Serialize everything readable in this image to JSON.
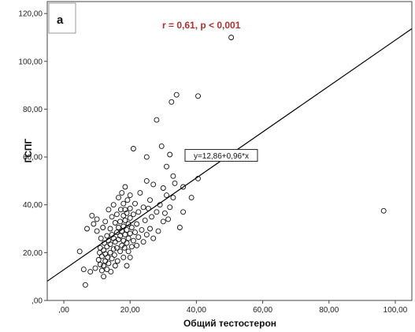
{
  "chart_data": {
    "type": "scatter",
    "panel_label": "а",
    "annotation": "r = 0,61, p < 0,001",
    "xlabel": "Общий тестостерон",
    "ylabel": "ГСПГ",
    "xlim": [
      -5,
      105
    ],
    "ylim": [
      0,
      125
    ],
    "x_ticks": [
      ",00",
      "20,00",
      "40,00",
      "60,00",
      "80,00",
      "100,00"
    ],
    "x_tick_values": [
      0,
      20,
      40,
      60,
      80,
      100
    ],
    "y_ticks": [
      ",00",
      "20,00",
      "40,00",
      "60,00",
      "80,00",
      "100,00",
      "120,00"
    ],
    "y_tick_values": [
      0,
      20,
      40,
      60,
      80,
      100,
      120
    ],
    "regression": {
      "label": "y=12,86+0,96*x",
      "intercept": 12.86,
      "slope": 0.96,
      "label_at": [
        47.5,
        60.5
      ]
    },
    "points": [
      [
        4.8,
        20.5
      ],
      [
        6.0,
        13.0
      ],
      [
        6.5,
        6.5
      ],
      [
        7.0,
        30.0
      ],
      [
        8.0,
        12.0
      ],
      [
        8.5,
        35.5
      ],
      [
        9.0,
        32.0
      ],
      [
        9.5,
        13.5
      ],
      [
        10.0,
        29.0
      ],
      [
        10.0,
        34.0
      ],
      [
        10.5,
        17.0
      ],
      [
        10.8,
        20.0
      ],
      [
        11.0,
        15.0
      ],
      [
        11.0,
        22.0
      ],
      [
        11.2,
        26.0
      ],
      [
        11.5,
        12.5
      ],
      [
        11.5,
        18.5
      ],
      [
        11.8,
        30.5
      ],
      [
        12.0,
        10.0
      ],
      [
        12.0,
        14.5
      ],
      [
        12.0,
        21.0
      ],
      [
        12.2,
        24.0
      ],
      [
        12.5,
        16.5
      ],
      [
        12.5,
        19.5
      ],
      [
        12.5,
        33.0
      ],
      [
        13.0,
        13.0
      ],
      [
        13.0,
        22.5
      ],
      [
        13.0,
        27.0
      ],
      [
        13.2,
        18.0
      ],
      [
        13.5,
        15.5
      ],
      [
        13.5,
        25.0
      ],
      [
        13.5,
        38.0
      ],
      [
        14.0,
        20.0
      ],
      [
        14.0,
        23.5
      ],
      [
        14.0,
        30.0
      ],
      [
        14.2,
        12.0
      ],
      [
        14.5,
        17.5
      ],
      [
        14.5,
        27.5
      ],
      [
        14.5,
        35.0
      ],
      [
        15.0,
        21.5
      ],
      [
        15.0,
        26.0
      ],
      [
        15.0,
        40.0
      ],
      [
        15.3,
        19.0
      ],
      [
        15.5,
        14.5
      ],
      [
        15.5,
        24.5
      ],
      [
        15.5,
        32.5
      ],
      [
        16.0,
        22.0
      ],
      [
        16.0,
        28.5
      ],
      [
        16.0,
        36.0
      ],
      [
        16.2,
        16.5
      ],
      [
        16.5,
        25.5
      ],
      [
        16.5,
        30.5
      ],
      [
        16.5,
        43.0
      ],
      [
        17.0,
        20.5
      ],
      [
        17.0,
        27.0
      ],
      [
        17.0,
        33.0
      ],
      [
        17.2,
        38.0
      ],
      [
        17.5,
        23.0
      ],
      [
        17.5,
        29.0
      ],
      [
        17.5,
        45.0
      ],
      [
        18.0,
        18.0
      ],
      [
        18.0,
        25.0
      ],
      [
        18.0,
        31.0
      ],
      [
        18.0,
        35.5
      ],
      [
        18.0,
        40.5
      ],
      [
        18.3,
        22.0
      ],
      [
        18.5,
        27.5
      ],
      [
        18.5,
        33.5
      ],
      [
        18.5,
        38.0
      ],
      [
        18.5,
        47.5
      ],
      [
        19.0,
        14.5
      ],
      [
        19.0,
        24.0
      ],
      [
        19.0,
        29.5
      ],
      [
        19.0,
        36.5
      ],
      [
        19.2,
        42.0
      ],
      [
        19.5,
        20.5
      ],
      [
        19.5,
        32.0
      ],
      [
        19.5,
        26.0
      ],
      [
        20.0,
        18.0
      ],
      [
        20.0,
        28.0
      ],
      [
        20.0,
        34.5
      ],
      [
        20.0,
        38.5
      ],
      [
        20.0,
        44.0
      ],
      [
        20.5,
        22.5
      ],
      [
        20.5,
        30.5
      ],
      [
        21.0,
        25.0
      ],
      [
        21.0,
        36.0
      ],
      [
        21.0,
        63.5
      ],
      [
        21.5,
        28.5
      ],
      [
        21.5,
        40.5
      ],
      [
        22.0,
        23.0
      ],
      [
        22.0,
        32.0
      ],
      [
        22.5,
        26.5
      ],
      [
        22.5,
        37.0
      ],
      [
        23.0,
        45.0
      ],
      [
        23.5,
        29.5
      ],
      [
        24.0,
        24.5
      ],
      [
        24.0,
        39.0
      ],
      [
        24.5,
        33.5
      ],
      [
        25.0,
        27.5
      ],
      [
        25.0,
        50.0
      ],
      [
        25.0,
        60.0
      ],
      [
        25.5,
        38.5
      ],
      [
        26.0,
        30.0
      ],
      [
        26.0,
        42.0
      ],
      [
        26.5,
        35.0
      ],
      [
        27.0,
        26.0
      ],
      [
        27.0,
        48.5
      ],
      [
        28.0,
        37.0
      ],
      [
        28.0,
        75.5
      ],
      [
        28.5,
        29.0
      ],
      [
        29.0,
        40.0
      ],
      [
        29.5,
        64.5
      ],
      [
        30.0,
        33.0
      ],
      [
        30.0,
        47.0
      ],
      [
        30.5,
        36.5
      ],
      [
        31.0,
        44.0
      ],
      [
        31.0,
        56.0
      ],
      [
        31.5,
        34.0
      ],
      [
        32.0,
        39.0
      ],
      [
        32.0,
        61.0
      ],
      [
        32.5,
        83.0
      ],
      [
        33.0,
        43.0
      ],
      [
        33.0,
        52.0
      ],
      [
        33.5,
        49.0
      ],
      [
        34.0,
        86.0
      ],
      [
        35.0,
        30.5
      ],
      [
        36.0,
        37.0
      ],
      [
        36.0,
        47.5
      ],
      [
        38.0,
        61.0
      ],
      [
        38.5,
        43.0
      ],
      [
        40.5,
        51.0
      ],
      [
        40.5,
        85.5
      ],
      [
        50.5,
        110.0
      ],
      [
        96.5,
        37.5
      ]
    ]
  }
}
